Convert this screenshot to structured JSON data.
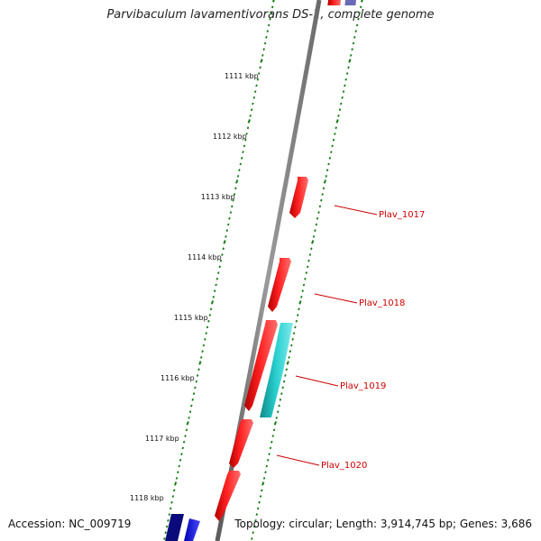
{
  "title": "Parvibaculum lavamentivorans DS-1, complete genome",
  "footer": {
    "accession": "Accession: NC_009719",
    "summary": "Topology: circular; Length: 3,914,745 bp; Genes: 3,686"
  },
  "scale_labels": [
    "1111 kbp",
    "1112 kbp",
    "1113 kbp",
    "1114 kbp",
    "1115 kbp",
    "1116 kbp",
    "1117 kbp",
    "1118 kbp"
  ],
  "gene_labels": [
    "Plav_1017",
    "Plav_1018",
    "Plav_1019",
    "Plav_1020"
  ],
  "colors": {
    "backbone": "#8c8c8c",
    "ticks": "#1a7a1a",
    "gene_red": "#ff1a1a",
    "gene_cyan": "#22c8c8",
    "gene_blue": "#1a1aff",
    "gene_navy": "#0a0a80",
    "label_line": "#cc0000"
  }
}
